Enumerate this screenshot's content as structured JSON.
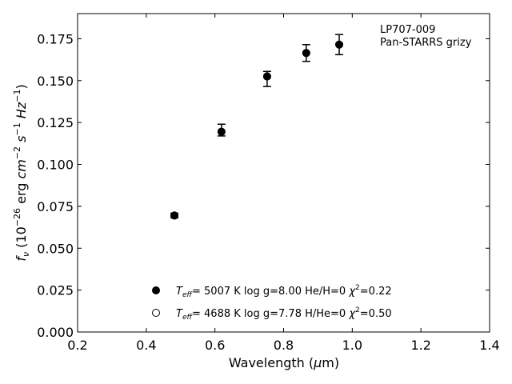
{
  "chart_data": {
    "type": "scatter",
    "title": "",
    "xlabel": "Wavelength (μm)",
    "ylabel": "f_ν (10^-26 erg cm^-2 s^-1 Hz^-1)",
    "xlim": [
      0.2,
      1.4
    ],
    "ylim": [
      0.0,
      0.19
    ],
    "xticks": [
      0.2,
      0.4,
      0.6,
      0.8,
      1.0,
      1.2,
      1.4
    ],
    "xtick_labels": [
      "0.2",
      "0.4",
      "0.6",
      "0.8",
      "1.0",
      "1.2",
      "1.4"
    ],
    "yticks": [
      0.0,
      0.025,
      0.05,
      0.075,
      0.1,
      0.125,
      0.15,
      0.175
    ],
    "ytick_labels": [
      "0.000",
      "0.025",
      "0.050",
      "0.075",
      "0.100",
      "0.125",
      "0.150",
      "0.175"
    ],
    "grid": false,
    "legend_position": "bottom-center",
    "annotation": [
      "LP707-009",
      "Pan-STARRS grizy"
    ],
    "observed": {
      "x": [
        0.482,
        0.619,
        0.752,
        0.866,
        0.962
      ],
      "y": [
        0.0695,
        0.1205,
        0.151,
        0.1665,
        0.1715
      ],
      "yerr": [
        0.0014,
        0.0035,
        0.0045,
        0.005,
        0.006
      ]
    },
    "series": [
      {
        "name": "T_eff= 5007 K log g=8.00 He/H=0 χ²=0.22",
        "marker": "filled",
        "x": [
          0.482,
          0.619,
          0.752,
          0.866,
          0.962
        ],
        "y": [
          0.0695,
          0.1195,
          0.1525,
          0.1665,
          0.1715
        ]
      },
      {
        "name": "T_eff= 4688 K log g=7.78 H/He=0 χ²=0.50",
        "marker": "open",
        "x": [
          0.482,
          0.619,
          0.752,
          0.866,
          0.962
        ],
        "y": [
          0.0695,
          0.1195,
          0.1525,
          0.1665,
          0.1715
        ]
      }
    ],
    "legend_entries": [
      {
        "marker": "filled",
        "teff_value": "5007 K",
        "logg": "log g=8.00",
        "comp": "He/H=0",
        "chi2": "=0.22"
      },
      {
        "marker": "open",
        "teff_value": "4688 K",
        "logg": "log g=7.78",
        "comp": "H/He=0",
        "chi2": "=0.50"
      }
    ],
    "colors": {
      "marker": "#000000",
      "axes": "#000000",
      "background": "#ffffff"
    }
  }
}
